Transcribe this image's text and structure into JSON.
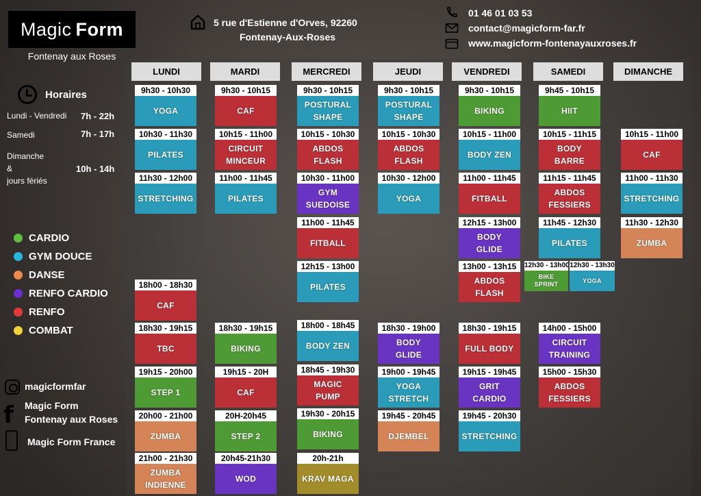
{
  "brand": {
    "name_light": "Magic",
    "name_bold": "Form",
    "subtitle": "Fontenay aux Roses"
  },
  "contact": {
    "address_line1": "5 rue d'Estienne d'Orves, 92260",
    "address_line2": "Fontenay-Aux-Roses",
    "phone": "01 46 01 03 53",
    "email": "contact@magicform-far.fr",
    "website": "www.magicform-fontenayauxroses.fr"
  },
  "hours": {
    "title": "Horaires",
    "weekday_label": "Lundi - Vendredi",
    "weekday_value": "7h - 22h",
    "saturday_label": "Samedi",
    "saturday_value": "7h - 17h",
    "sunday_label_1": "Dimanche",
    "sunday_label_2": "&",
    "sunday_label_3": "jours fériés",
    "sunday_value": "10h - 14h"
  },
  "legend": [
    {
      "label": "CARDIO",
      "color": "#5fbf3f"
    },
    {
      "label": "GYM DOUCE",
      "color": "#29b6dd"
    },
    {
      "label": "DANSE",
      "color": "#ef8a4c"
    },
    {
      "label": "RENFO CARDIO",
      "color": "#6b2fd1"
    },
    {
      "label": "RENFO",
      "color": "#e23a3a"
    },
    {
      "label": "COMBAT",
      "color": "#f2d23a"
    }
  ],
  "social": {
    "instagram": "magicformfar",
    "facebook_line1": "Magic Form",
    "facebook_line2": "Fontenay aux Roses",
    "app": "Magic Form France"
  },
  "category_colors": {
    "cardio": "#4e9a35",
    "gym": "#2a9bb8",
    "danse": "#d48456",
    "renfocardio": "#6a34c2",
    "renfo": "#bb3037",
    "combat": "#a38c2a"
  },
  "days": [
    "LUNDI",
    "MARDI",
    "MERCREDI",
    "JEUDI",
    "VENDREDI",
    "SAMEDI",
    "DIMANCHE"
  ],
  "classes": {
    "lundi": [
      {
        "time": "9h30 - 10h30",
        "name": "YOGA",
        "cat": "gym"
      },
      {
        "time": "10h30 - 11h30",
        "name": "PILATES",
        "cat": "gym"
      },
      {
        "time": "11h30 - 12h00",
        "name": "STRETCHING",
        "cat": "gym"
      },
      {
        "time": "18h00 - 18h30",
        "name": "CAF",
        "cat": "renfo"
      },
      {
        "time": "18h30 - 19h15",
        "name": "TBC",
        "cat": "renfo"
      },
      {
        "time": "19h15 - 20h00",
        "name": "STEP 1",
        "cat": "cardio"
      },
      {
        "time": "20h00 - 21h00",
        "name": "ZUMBA",
        "cat": "danse"
      },
      {
        "time": "21h00 - 21h30",
        "name": "ZUMBA\nINDIENNE",
        "cat": "danse"
      }
    ],
    "mardi": [
      {
        "time": "9h30 - 10h15",
        "name": "CAF",
        "cat": "renfo"
      },
      {
        "time": "10h15 - 11h00",
        "name": "CIRCUIT\nMINCEUR",
        "cat": "renfo"
      },
      {
        "time": "11h00 - 11h45",
        "name": "PILATES",
        "cat": "gym"
      },
      {
        "time": "18h30 - 19h15",
        "name": "BIKING",
        "cat": "cardio"
      },
      {
        "time": "19h15 - 20H",
        "name": "CAF",
        "cat": "renfo"
      },
      {
        "time": "20H-20h45",
        "name": "STEP 2",
        "cat": "cardio"
      },
      {
        "time": "20h45-21h30",
        "name": "WOD",
        "cat": "renfocardio"
      }
    ],
    "mercredi": [
      {
        "time": "9h30 - 10h15",
        "name": "POSTURAL\nSHAPE",
        "cat": "gym"
      },
      {
        "time": "10h15 - 10h30",
        "name": "ABDOS\nFLASH",
        "cat": "renfo"
      },
      {
        "time": "10h30 - 11h00",
        "name": "GYM\nSUEDOISE",
        "cat": "renfocardio"
      },
      {
        "time": "11h00 - 11h45",
        "name": "FITBALL",
        "cat": "renfo"
      },
      {
        "time": "12h15 - 13h00",
        "name": "PILATES",
        "cat": "gym"
      },
      {
        "time": "18h00 - 18h45",
        "name": "BODY ZEN",
        "cat": "gym"
      },
      {
        "time": "18h45 - 19h30",
        "name": "MAGIC\nPUMP",
        "cat": "renfo"
      },
      {
        "time": "19h30 - 20h15",
        "name": "BIKING",
        "cat": "cardio"
      },
      {
        "time": "20h-21h",
        "name": "KRAV MAGA",
        "cat": "combat"
      }
    ],
    "jeudi": [
      {
        "time": "9h30 - 10h15",
        "name": "POSTURAL\nSHAPE",
        "cat": "gym"
      },
      {
        "time": "10h15 - 10h30",
        "name": "ABDOS\nFLASH",
        "cat": "renfo"
      },
      {
        "time": "10h30 - 12h00",
        "name": "YOGA",
        "cat": "gym"
      },
      {
        "time": "18h30 - 19h00",
        "name": "BODY\nGLIDE",
        "cat": "renfocardio"
      },
      {
        "time": "19h00 - 19h45",
        "name": "YOGA\nSTRETCH",
        "cat": "gym"
      },
      {
        "time": "19h45 - 20h45",
        "name": "DJEMBEL",
        "cat": "danse"
      }
    ],
    "vendredi": [
      {
        "time": "9h30 - 10h15",
        "name": "BIKING",
        "cat": "cardio"
      },
      {
        "time": "10h15 - 11h00",
        "name": "BODY ZEN",
        "cat": "gym"
      },
      {
        "time": "11h00 - 11h45",
        "name": "FITBALL",
        "cat": "renfo"
      },
      {
        "time": "12h15 - 13h00",
        "name": "BODY\nGLIDE",
        "cat": "renfocardio"
      },
      {
        "time": "13h00 - 13h15",
        "name": "ABDOS\nFLASH",
        "cat": "renfo"
      },
      {
        "time": "18h30 - 19h15",
        "name": "FULL BODY",
        "cat": "renfo"
      },
      {
        "time": "19h15 - 19h45",
        "name": "GRIT\nCARDIO",
        "cat": "renfocardio"
      },
      {
        "time": "19h45 - 20h30",
        "name": "STRETCHING",
        "cat": "gym"
      }
    ],
    "samedi": [
      {
        "time": "9h45 - 10h15",
        "name": "HIIT",
        "cat": "cardio"
      },
      {
        "time": "10h15 - 11h15",
        "name": "BODY\nBARRE",
        "cat": "renfo"
      },
      {
        "time": "11h15 - 11h45",
        "name": "ABDOS\nFESSIERS",
        "cat": "renfo"
      },
      {
        "time": "11h45 - 12h30",
        "name": "PILATES",
        "cat": "gym"
      },
      {
        "time": "12h30 - 13h00",
        "name": "BIKE\nSPRINT",
        "cat": "cardio"
      },
      {
        "time": "12h30 - 13h30",
        "name": "YOGA",
        "cat": "gym"
      },
      {
        "time": "14h00 - 15h00",
        "name": "CIRCUIT\nTRAINING",
        "cat": "renfocardio"
      },
      {
        "time": "15h00 - 15h30",
        "name": "ABDOS\nFESSIERS",
        "cat": "renfo"
      }
    ],
    "dimanche": [
      {
        "time": "10h15 - 11h00",
        "name": "CAF",
        "cat": "renfo"
      },
      {
        "time": "11h00 - 11h30",
        "name": "STRETCHING",
        "cat": "gym"
      },
      {
        "time": "11h30 - 12h30",
        "name": "ZUMBA",
        "cat": "danse"
      }
    ]
  }
}
